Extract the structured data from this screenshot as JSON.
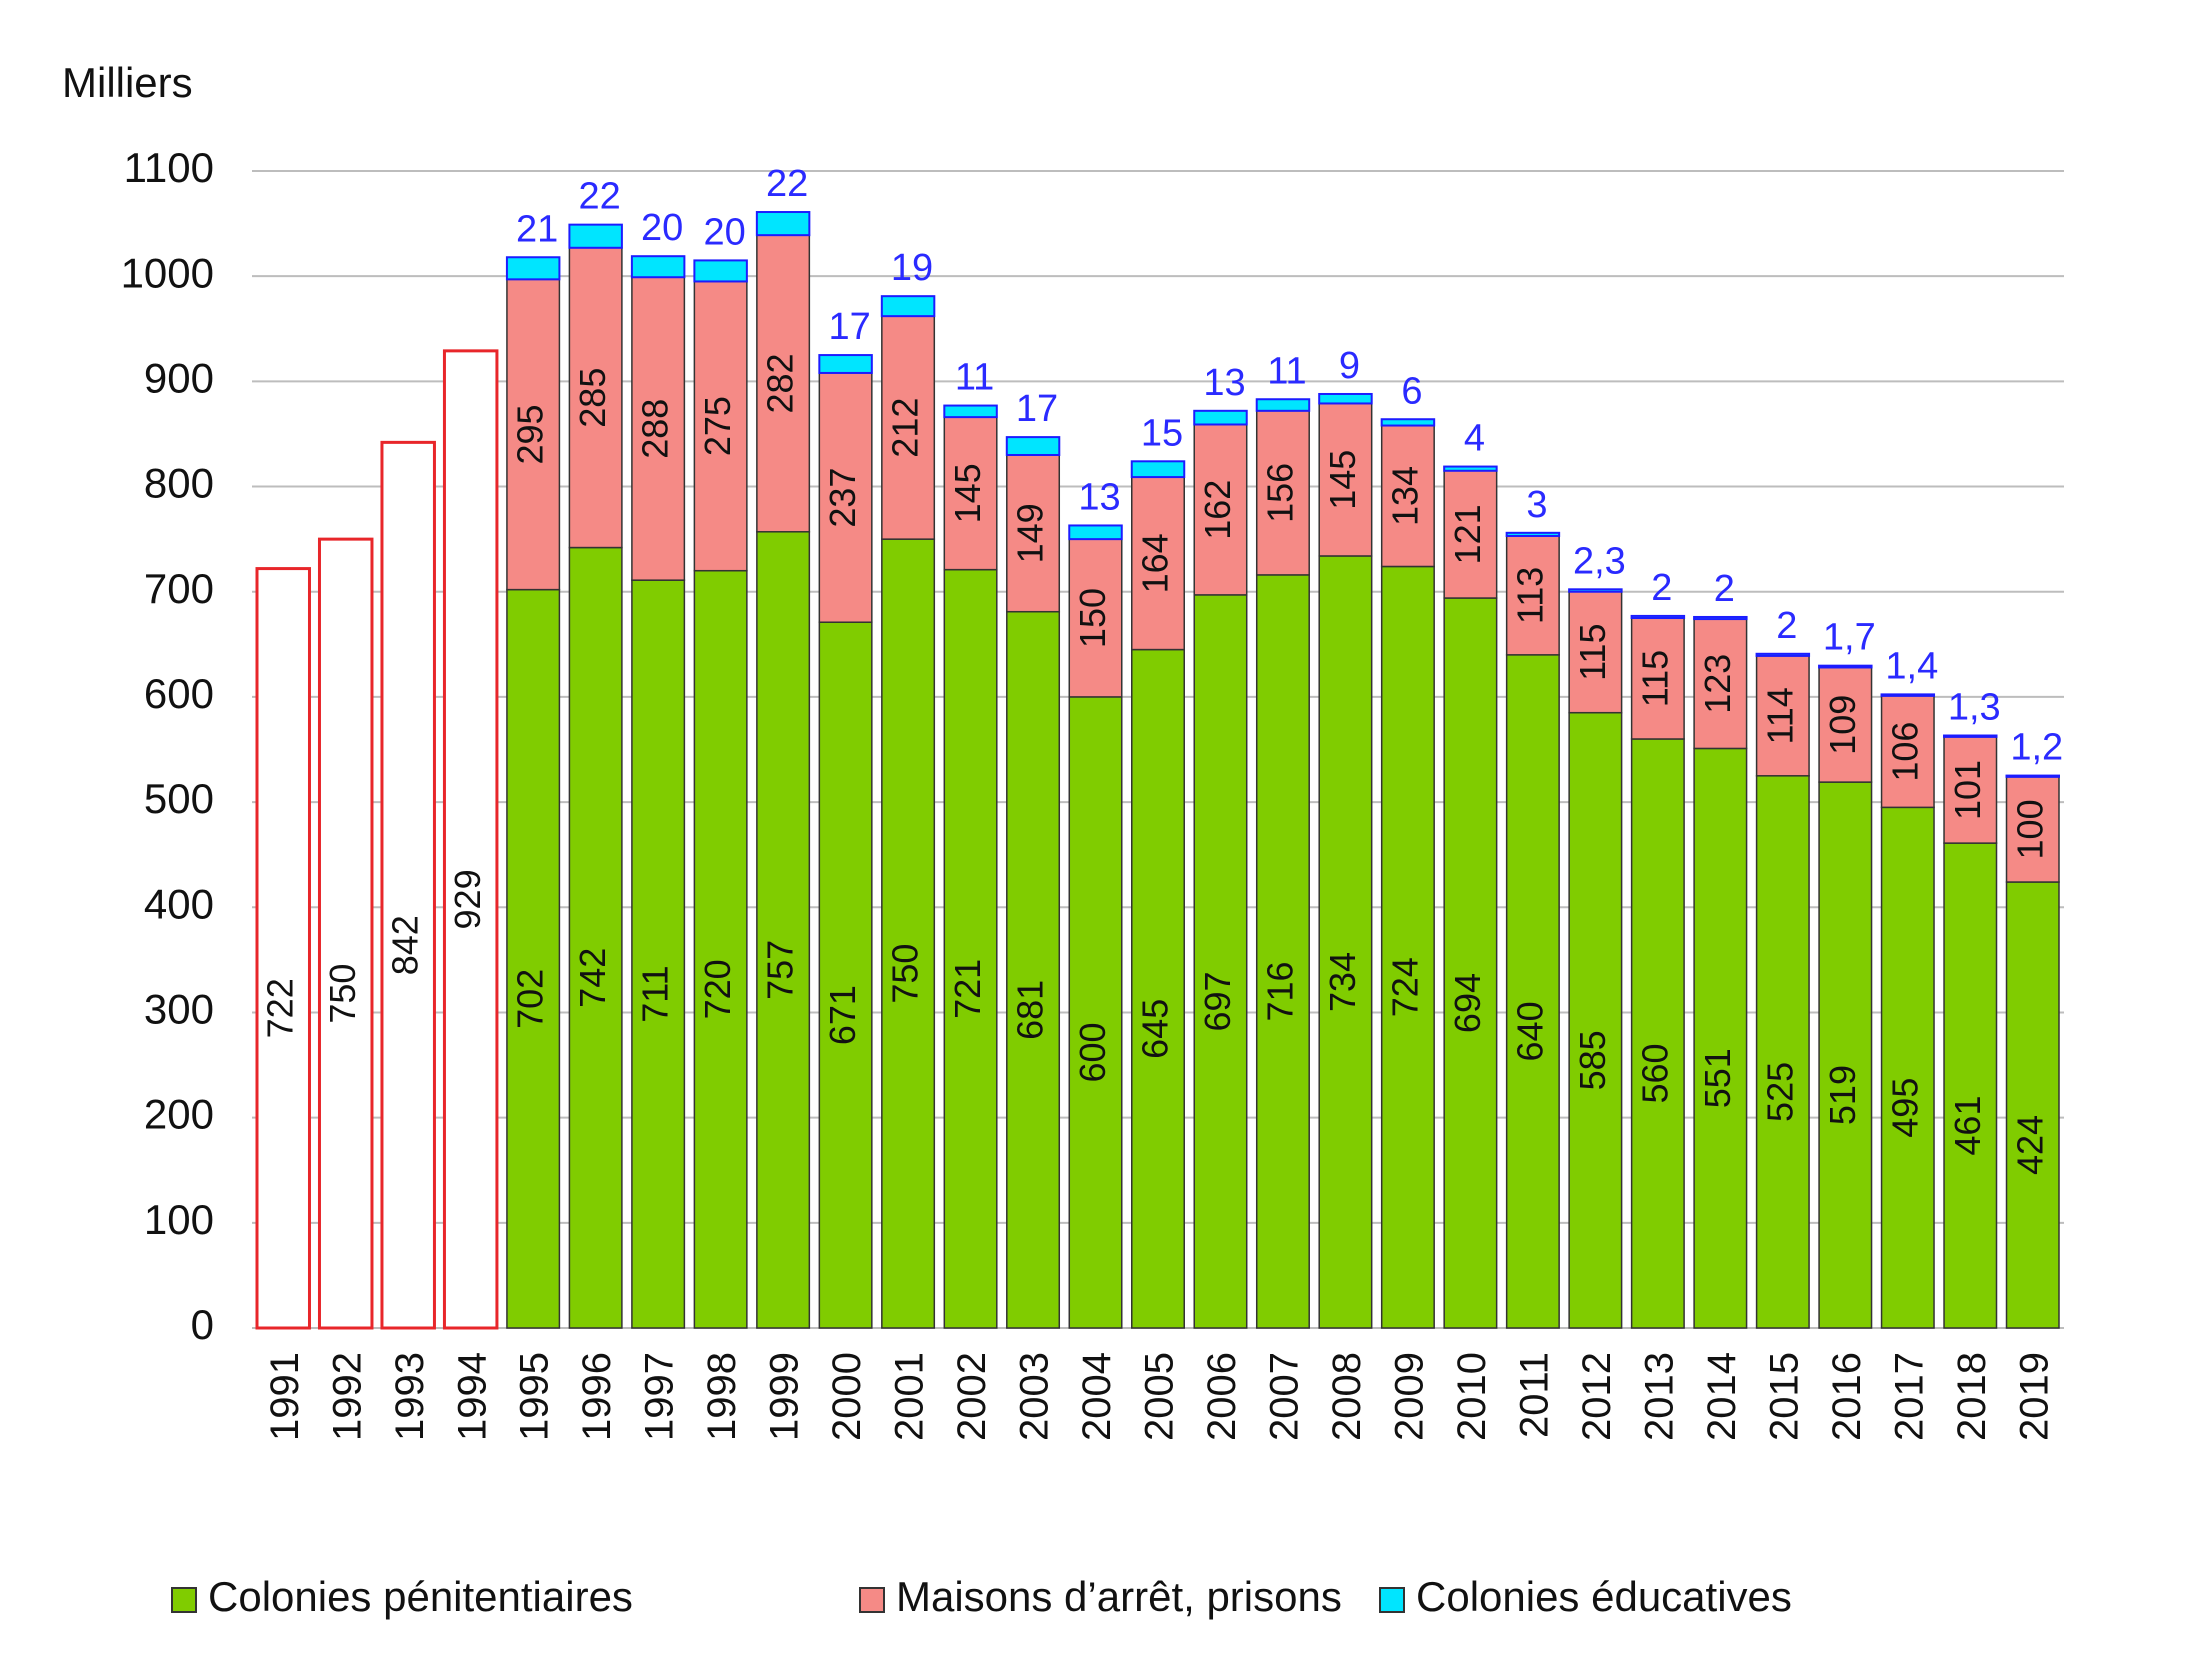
{
  "chart_data": {
    "type": "stacked_bar",
    "y_label": "Milliers",
    "categories": [
      "1991",
      "1992",
      "1993",
      "1994",
      "1995",
      "1996",
      "1997",
      "1998",
      "1999",
      "2000",
      "2001",
      "2002",
      "2003",
      "2004",
      "2005",
      "2006",
      "2007",
      "2008",
      "2009",
      "2010",
      "2011",
      "2012",
      "2013",
      "2014",
      "2015",
      "2016",
      "2017",
      "2018",
      "2019"
    ],
    "totals": {
      "color": "#ffffff",
      "edge_color": "#e8262a",
      "values": [
        722,
        750,
        842,
        929,
        null,
        null,
        null,
        null,
        null,
        null,
        null,
        null,
        null,
        null,
        null,
        null,
        null,
        null,
        null,
        null,
        null,
        null,
        null,
        null,
        null,
        null,
        null,
        null,
        null
      ]
    },
    "series": [
      {
        "name": "Colonies pénitentiaires",
        "color": "#80cc00",
        "label_position": "inside",
        "values": [
          null,
          null,
          null,
          null,
          702,
          742,
          711,
          720,
          757,
          671,
          750,
          721,
          681,
          600,
          645,
          697,
          716,
          734,
          724,
          694,
          640,
          585,
          560,
          551,
          525,
          519,
          495,
          461,
          424
        ]
      },
      {
        "name": "Maisons d’arrêt, prisons",
        "color": "#f58a86",
        "label_position": "inside",
        "values": [
          null,
          null,
          null,
          null,
          295,
          285,
          288,
          275,
          282,
          237,
          212,
          145,
          149,
          150,
          164,
          162,
          156,
          145,
          134,
          121,
          113,
          115,
          115,
          123,
          114,
          109,
          106,
          101,
          100
        ]
      },
      {
        "name": "Colonies éducatives",
        "color": "#00e5ff",
        "label_position": "above",
        "label_color": "#2a2aff",
        "values": [
          null,
          null,
          null,
          null,
          21,
          22,
          20,
          20,
          22,
          17,
          19,
          11,
          17,
          13,
          15,
          13,
          11,
          9,
          6,
          4,
          3,
          2.3,
          2,
          2,
          2,
          1.7,
          1.4,
          1.3,
          1.2
        ],
        "value_labels": [
          null,
          null,
          null,
          null,
          "21",
          "22",
          "20",
          "20",
          "22",
          "17",
          "19",
          "11",
          "17",
          "13",
          "15",
          "13",
          "11",
          "9",
          "6",
          "4",
          "3",
          "2,3",
          "2",
          "2",
          "2",
          "1,7",
          "1,4",
          "1,3",
          "1,2"
        ]
      }
    ],
    "ylim": [
      0,
      1100
    ],
    "yticks": [
      0,
      100,
      200,
      300,
      400,
      500,
      600,
      700,
      800,
      900,
      1000,
      1100
    ],
    "grid": true
  }
}
